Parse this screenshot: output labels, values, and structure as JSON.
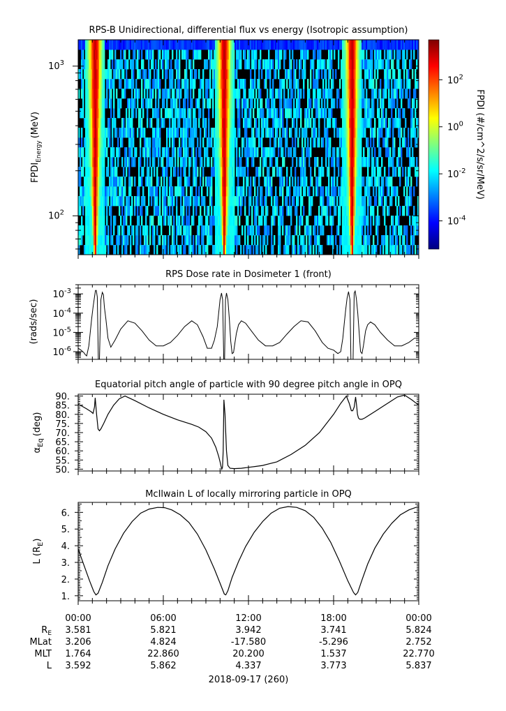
{
  "colors": {
    "colorbar": [
      "#00007f",
      "#0000ff",
      "#007fff",
      "#00ffff",
      "#7fff7f",
      "#ffff00",
      "#ff7f00",
      "#ff0000",
      "#7f0000"
    ],
    "background": "#000000",
    "line": "#000000"
  },
  "chart_data": [
    {
      "type": "heatmap",
      "title": "RPS-B  Unidirectional, differential flux vs energy (Isotropic assumption)",
      "ylabel": "FPDI",
      "ylabel_sub": "Energy",
      "ylabel_unit": "(MeV)",
      "y_scale": "log",
      "ylim": [
        55,
        1500
      ],
      "yticks": [
        {
          "value": 100,
          "base": "10",
          "exp": "2"
        },
        {
          "value": 1000,
          "base": "10",
          "exp": "3"
        }
      ],
      "xlim": [
        0,
        24
      ],
      "colorbar": {
        "label": "FPDI (#/cm^2/s/sr/MeV)",
        "scale": "log",
        "range_log10": [
          -5.2,
          3.7
        ],
        "ticks": [
          {
            "base": "10",
            "exp": "2",
            "value_log10": 2
          },
          {
            "base": "10",
            "exp": "0",
            "value_log10": 0
          },
          {
            "base": "10",
            "exp": "-2",
            "value_log10": -2
          },
          {
            "base": "10",
            "exp": "-4",
            "value_log10": -4
          }
        ]
      },
      "peaks_hours": [
        1.2,
        10.3,
        19.3
      ]
    },
    {
      "type": "line",
      "title": "RPS  Dose rate in Dosimeter 1 (front)",
      "ylabel": "(rads/sec)",
      "y_scale": "log",
      "ylim": [
        4e-07,
        0.003
      ],
      "yticks": [
        {
          "value": 1e-06,
          "base": "10",
          "exp": "-6"
        },
        {
          "value": 1e-05,
          "base": "10",
          "exp": "-5"
        },
        {
          "value": 0.0001,
          "base": "10",
          "exp": "-4"
        },
        {
          "value": 0.001,
          "base": "10",
          "exp": "-3"
        }
      ],
      "xlim": [
        0,
        24
      ],
      "x": [
        0,
        0.2,
        0.4,
        0.5,
        0.6,
        0.75,
        0.85,
        0.95,
        1.05,
        1.15,
        1.22,
        1.28,
        1.35,
        1.42,
        1.5,
        1.6,
        1.7,
        1.78,
        1.85,
        1.95,
        2.1,
        2.3,
        2.6,
        3,
        3.5,
        4,
        4.5,
        5,
        5.5,
        6,
        6.5,
        7,
        7.5,
        8,
        8.4,
        8.8,
        9.1,
        9.4,
        9.6,
        9.8,
        9.9,
        10,
        10.1,
        10.18,
        10.26,
        10.32,
        10.38,
        10.45,
        10.55,
        10.65,
        10.75,
        10.85,
        10.95,
        11.05,
        11.15,
        11.3,
        11.5,
        11.8,
        12.2,
        12.7,
        13.2,
        13.7,
        14.2,
        14.7,
        15.2,
        15.7,
        16.2,
        16.7,
        17.2,
        17.6,
        18,
        18.3,
        18.5,
        18.65,
        18.75,
        18.85,
        18.95,
        19.05,
        19.15,
        19.22,
        19.3,
        19.37,
        19.45,
        19.52,
        19.6,
        19.7,
        19.8,
        19.9,
        20,
        20.1,
        20.25,
        20.4,
        20.6,
        20.9,
        21.3,
        21.8,
        22.3,
        22.8,
        23.3,
        23.7,
        24
      ],
      "values": [
        1.5e-06,
        1.2e-06,
        9e-07,
        7e-07,
        6e-07,
        2e-06,
        1e-05,
        5e-05,
        0.0002,
        0.0007,
        0.0015,
        0.0015,
        0.0007,
        4e-07,
        4e-07,
        0.0005,
        0.0012,
        0.0009,
        0.0002,
        5e-05,
        5e-06,
        1.7e-06,
        4e-06,
        1.5e-05,
        4e-05,
        3e-05,
        1.2e-05,
        4e-06,
        2e-06,
        2e-06,
        3e-06,
        7e-06,
        2e-05,
        4e-05,
        2.5e-05,
        6e-06,
        1.5e-06,
        1.5e-06,
        4e-06,
        2e-05,
        0.0001,
        0.0005,
        0.0011,
        0.0005,
        4e-07,
        4e-07,
        0.0005,
        0.0011,
        0.0005,
        5e-05,
        3.5e-06,
        8e-07,
        9e-07,
        3e-06,
        9e-06,
        2.5e-05,
        4e-05,
        3e-05,
        1.2e-05,
        4e-06,
        2e-06,
        2e-06,
        3e-06,
        8e-06,
        2e-05,
        4e-05,
        3.5e-05,
        1.2e-05,
        3e-06,
        1.5e-06,
        1.2e-06,
        8e-07,
        1e-06,
        5e-06,
        3e-05,
        0.00015,
        0.0006,
        0.0013,
        0.0005,
        4e-07,
        4e-07,
        4e-07,
        0.0011,
        0.0014,
        0.0006,
        0.0001,
        1e-05,
        1e-06,
        8e-07,
        2e-06,
        1.2e-05,
        2.5e-05,
        3.5e-05,
        2.5e-05,
        1e-05,
        4e-06,
        2e-06,
        2e-06,
        3e-06,
        5e-06,
        5e-06
      ]
    },
    {
      "type": "line",
      "title": "Equatorial pitch angle of particle with 90 degree pitch angle in OPQ",
      "ylabel": "α",
      "ylabel_sub": "Eq",
      "ylabel_unit": "(deg)",
      "ylim": [
        49,
        91
      ],
      "yticks": [
        50,
        55,
        60,
        65,
        70,
        75,
        80,
        85,
        90
      ],
      "xlim": [
        0,
        24
      ],
      "x": [
        0,
        0.3,
        0.6,
        0.9,
        1.05,
        1.15,
        1.2,
        1.3,
        1.4,
        1.5,
        1.6,
        1.8,
        2.1,
        2.5,
        2.9,
        3.3,
        4,
        5,
        6,
        7,
        8,
        8.5,
        9,
        9.4,
        9.7,
        9.9,
        10,
        10.05,
        10.12,
        10.17,
        10.22,
        10.27,
        10.35,
        10.45,
        10.55,
        10.7,
        11,
        11.5,
        12,
        12.5,
        13,
        14,
        15,
        16,
        17,
        18,
        18.5,
        18.9,
        19.1,
        19.25,
        19.35,
        19.45,
        19.55,
        19.62,
        19.68,
        19.75,
        19.85,
        20,
        20.2,
        20.5,
        21,
        21.5,
        22,
        22.5,
        23,
        23.5,
        24
      ],
      "values": [
        85.5,
        84.3,
        83,
        81.5,
        80.5,
        84,
        89,
        80,
        72,
        71,
        72,
        75,
        80,
        85,
        88.5,
        90,
        87.5,
        83.5,
        80,
        77,
        74.5,
        73,
        70.5,
        67,
        62,
        57,
        54,
        52,
        50,
        51,
        60,
        88,
        80,
        60,
        52,
        50.5,
        50.3,
        50.5,
        51,
        51.5,
        52,
        54,
        58,
        63,
        70,
        80,
        86,
        90,
        86,
        82,
        82,
        84,
        89.5,
        85,
        80,
        78,
        77.3,
        77.3,
        78,
        79.5,
        82,
        84.5,
        87,
        89.5,
        90.5,
        88,
        85
      ]
    },
    {
      "type": "line",
      "title": "McIlwain L of locally mirroring particle in OPQ",
      "ylabel": "L (R",
      "ylabel_sub": "E",
      "ylabel_unit": ")",
      "ylim": [
        0.7,
        6.6
      ],
      "yticks": [
        1,
        2,
        3,
        4,
        5,
        6
      ],
      "xlim": [
        0,
        24
      ],
      "xticks": [
        "00:00",
        "06:00",
        "12:00",
        "18:00",
        "00:00"
      ],
      "x": [
        0,
        0.4,
        0.8,
        1.1,
        1.25,
        1.4,
        1.7,
        2.1,
        2.6,
        3.2,
        3.8,
        4.4,
        5,
        5.6,
        6.1,
        6.6,
        7.2,
        7.8,
        8.4,
        9,
        9.6,
        10,
        10.3,
        10.4,
        10.55,
        10.85,
        11.3,
        11.8,
        12.4,
        13,
        13.6,
        14.2,
        14.8,
        15.4,
        16,
        16.6,
        17.2,
        17.8,
        18.4,
        19,
        19.4,
        19.55,
        19.7,
        20,
        20.4,
        20.9,
        21.5,
        22.1,
        22.7,
        23.3,
        23.8,
        24
      ],
      "values": [
        3.8,
        2.85,
        1.9,
        1.25,
        1.05,
        1.15,
        1.8,
        2.8,
        3.8,
        4.75,
        5.45,
        5.95,
        6.2,
        6.3,
        6.28,
        6.15,
        5.85,
        5.4,
        4.7,
        3.75,
        2.6,
        1.75,
        1.1,
        1.05,
        1.3,
        2.1,
        3.05,
        3.95,
        4.8,
        5.45,
        5.95,
        6.25,
        6.35,
        6.3,
        6.1,
        5.7,
        5.05,
        4.2,
        3.1,
        1.9,
        1.2,
        1.05,
        1.2,
        1.95,
        2.9,
        3.85,
        4.7,
        5.35,
        5.85,
        6.15,
        6.3,
        6.32
      ]
    }
  ],
  "ephemeris": {
    "times": [
      "00:00",
      "06:00",
      "12:00",
      "18:00",
      "00:00"
    ],
    "rows": [
      {
        "label": "R",
        "label_sub": "E",
        "values": [
          "3.581",
          "5.821",
          "3.942",
          "3.741",
          "5.824"
        ]
      },
      {
        "label": "MLat",
        "label_sub": "",
        "values": [
          "3.206",
          "4.824",
          "-17.580",
          "-5.296",
          "2.752"
        ]
      },
      {
        "label": "MLT",
        "label_sub": "",
        "values": [
          "1.764",
          "22.860",
          "20.200",
          "1.537",
          "22.770"
        ]
      },
      {
        "label": "L",
        "label_sub": "",
        "values": [
          "3.592",
          "5.862",
          "4.337",
          "3.773",
          "5.837"
        ]
      }
    ],
    "date": "2018-09-17 (260)"
  }
}
